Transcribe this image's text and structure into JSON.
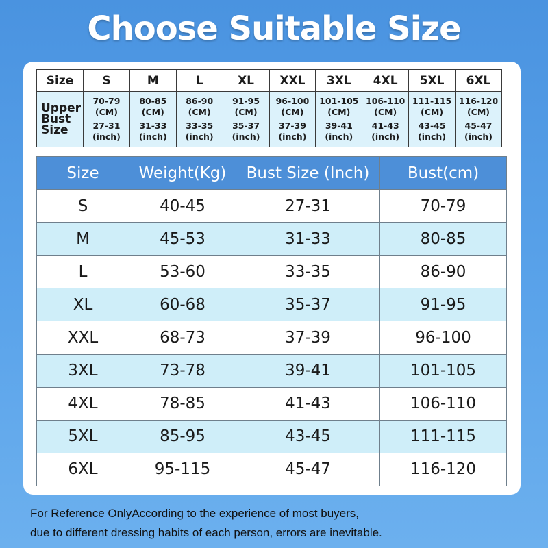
{
  "title": "Choose Suitable Size",
  "top_table": {
    "size_label": "Size",
    "row_label": "Upper Bust Size",
    "columns": [
      {
        "size": "S",
        "cm": "70-79",
        "cm_unit": "(CM)",
        "inch": "27-31",
        "inch_unit": "(inch)"
      },
      {
        "size": "M",
        "cm": "80-85",
        "cm_unit": "(CM)",
        "inch": "31-33",
        "inch_unit": "(inch)"
      },
      {
        "size": "L",
        "cm": "86-90",
        "cm_unit": "(CM)",
        "inch": "33-35",
        "inch_unit": "(inch)"
      },
      {
        "size": "XL",
        "cm": "91-95",
        "cm_unit": "(CM)",
        "inch": "35-37",
        "inch_unit": "(inch)"
      },
      {
        "size": "XXL",
        "cm": "96-100",
        "cm_unit": "(CM)",
        "inch": "37-39",
        "inch_unit": "(inch)"
      },
      {
        "size": "3XL",
        "cm": "101-105",
        "cm_unit": "(CM)",
        "inch": "39-41",
        "inch_unit": "(inch)"
      },
      {
        "size": "4XL",
        "cm": "106-110",
        "cm_unit": "(CM)",
        "inch": "41-43",
        "inch_unit": "(inch)"
      },
      {
        "size": "5XL",
        "cm": "111-115",
        "cm_unit": "(CM)",
        "inch": "43-45",
        "inch_unit": "(inch)"
      },
      {
        "size": "6XL",
        "cm": "116-120",
        "cm_unit": "(CM)",
        "inch": "45-47",
        "inch_unit": "(inch)"
      }
    ]
  },
  "main_table": {
    "headers": [
      "Size",
      "Weight(Kg)",
      "Bust Size (Inch)",
      "Bust(cm)"
    ],
    "rows": [
      [
        "S",
        "40-45",
        "27-31",
        "70-79"
      ],
      [
        "M",
        "45-53",
        "31-33",
        "80-85"
      ],
      [
        "L",
        "53-60",
        "33-35",
        "86-90"
      ],
      [
        "XL",
        "60-68",
        "35-37",
        "91-95"
      ],
      [
        "XXL",
        "68-73",
        "37-39",
        "96-100"
      ],
      [
        "3XL",
        "73-78",
        "39-41",
        "101-105"
      ],
      [
        "4XL",
        "78-85",
        "41-43",
        "106-110"
      ],
      [
        "5XL",
        "85-95",
        "43-45",
        "111-115"
      ],
      [
        "6XL",
        "95-115",
        "45-47",
        "116-120"
      ]
    ]
  },
  "footer": {
    "line1": "For Reference OnlyAccording to the experience of most buyers,",
    "line2": "due to different dressing habits of each person, errors are inevitable."
  },
  "colors": {
    "background": "#4a93e0",
    "header_blue": "#4d8fd8",
    "row_tint": "#cfeef9"
  }
}
